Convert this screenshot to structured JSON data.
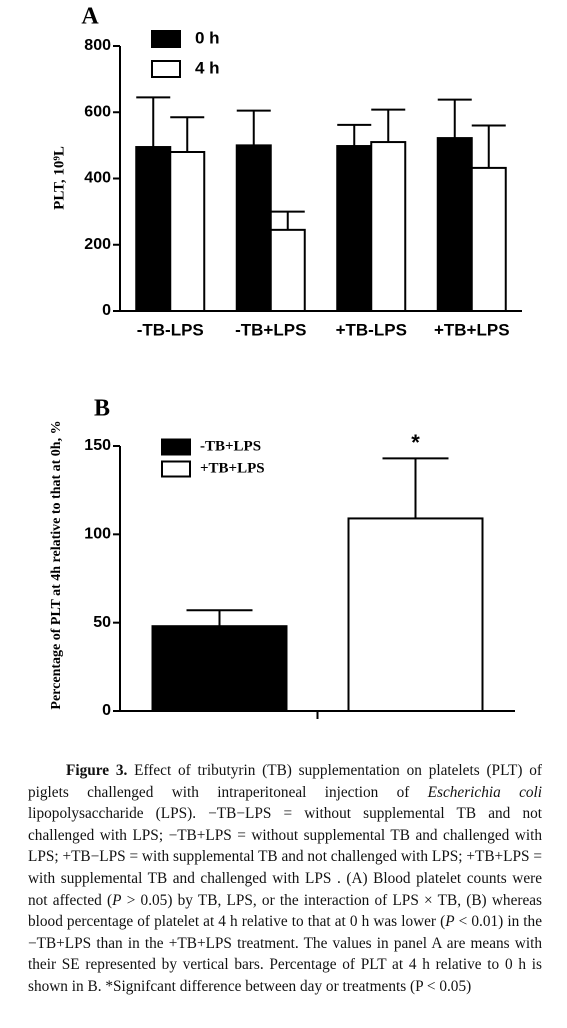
{
  "chart_data": [
    {
      "type": "bar",
      "panel": "A",
      "ylabel": "PLT, 10⁹L",
      "categories": [
        "-TB-LPS",
        "-TB+LPS",
        "+TB-LPS",
        "+TB+LPS"
      ],
      "series": [
        {
          "name": "0 h",
          "color": "#000000",
          "values": [
            495,
            500,
            498,
            522
          ],
          "errors": [
            150,
            105,
            64,
            116
          ]
        },
        {
          "name": "4 h",
          "color": "#ffffff",
          "values": [
            480,
            245,
            510,
            432
          ],
          "errors": [
            105,
            55,
            98,
            128
          ]
        }
      ],
      "ylim": [
        0,
        800
      ],
      "yticks": [
        0,
        200,
        400,
        600,
        800
      ]
    },
    {
      "type": "bar",
      "panel": "B",
      "ylabel": "Percentage of PLT at 4h relative to that at 0h, %",
      "categories": [
        null
      ],
      "series": [
        {
          "name": "-TB+LPS",
          "color": "#000000",
          "values": [
            48
          ],
          "errors": [
            9
          ]
        },
        {
          "name": "+TB+LPS",
          "color": "#ffffff",
          "values": [
            109
          ],
          "errors": [
            34
          ]
        }
      ],
      "annotation": "*",
      "ylim": [
        0,
        150
      ],
      "yticks": [
        0,
        50,
        100,
        150
      ]
    }
  ],
  "caption": [
    "Figure 3.",
    " Effect of tributyrin (TB) supplementation on platelets (PLT) of piglets challenged with intraperitoneal injection of ",
    "Escherichia coli",
    " lipopolysaccharide (LPS). −TB−LPS = without supplemental TB and not challenged with LPS; −TB+LPS = without supplemental TB and challenged with LPS; +TB−LPS = with supplemental TB and not challenged with LPS; +TB+LPS = with supplemental TB and challenged with LPS . (A) Blood platelet counts were not affected (",
    "P",
    " > 0.05) by TB, LPS, or the interaction of LPS × TB, (B) whereas blood percentage of platelet at 4 h relative to that at 0 h was lower (",
    "P",
    " < 0.01) in the −TB+LPS than in the +TB+LPS treatment. The values in panel A are means with their SE represented by vertical bars. Percentage of PLT at 4 h relative to 0 h is shown in B. *Signifcant difference between day or treatments (P < 0.05)"
  ]
}
